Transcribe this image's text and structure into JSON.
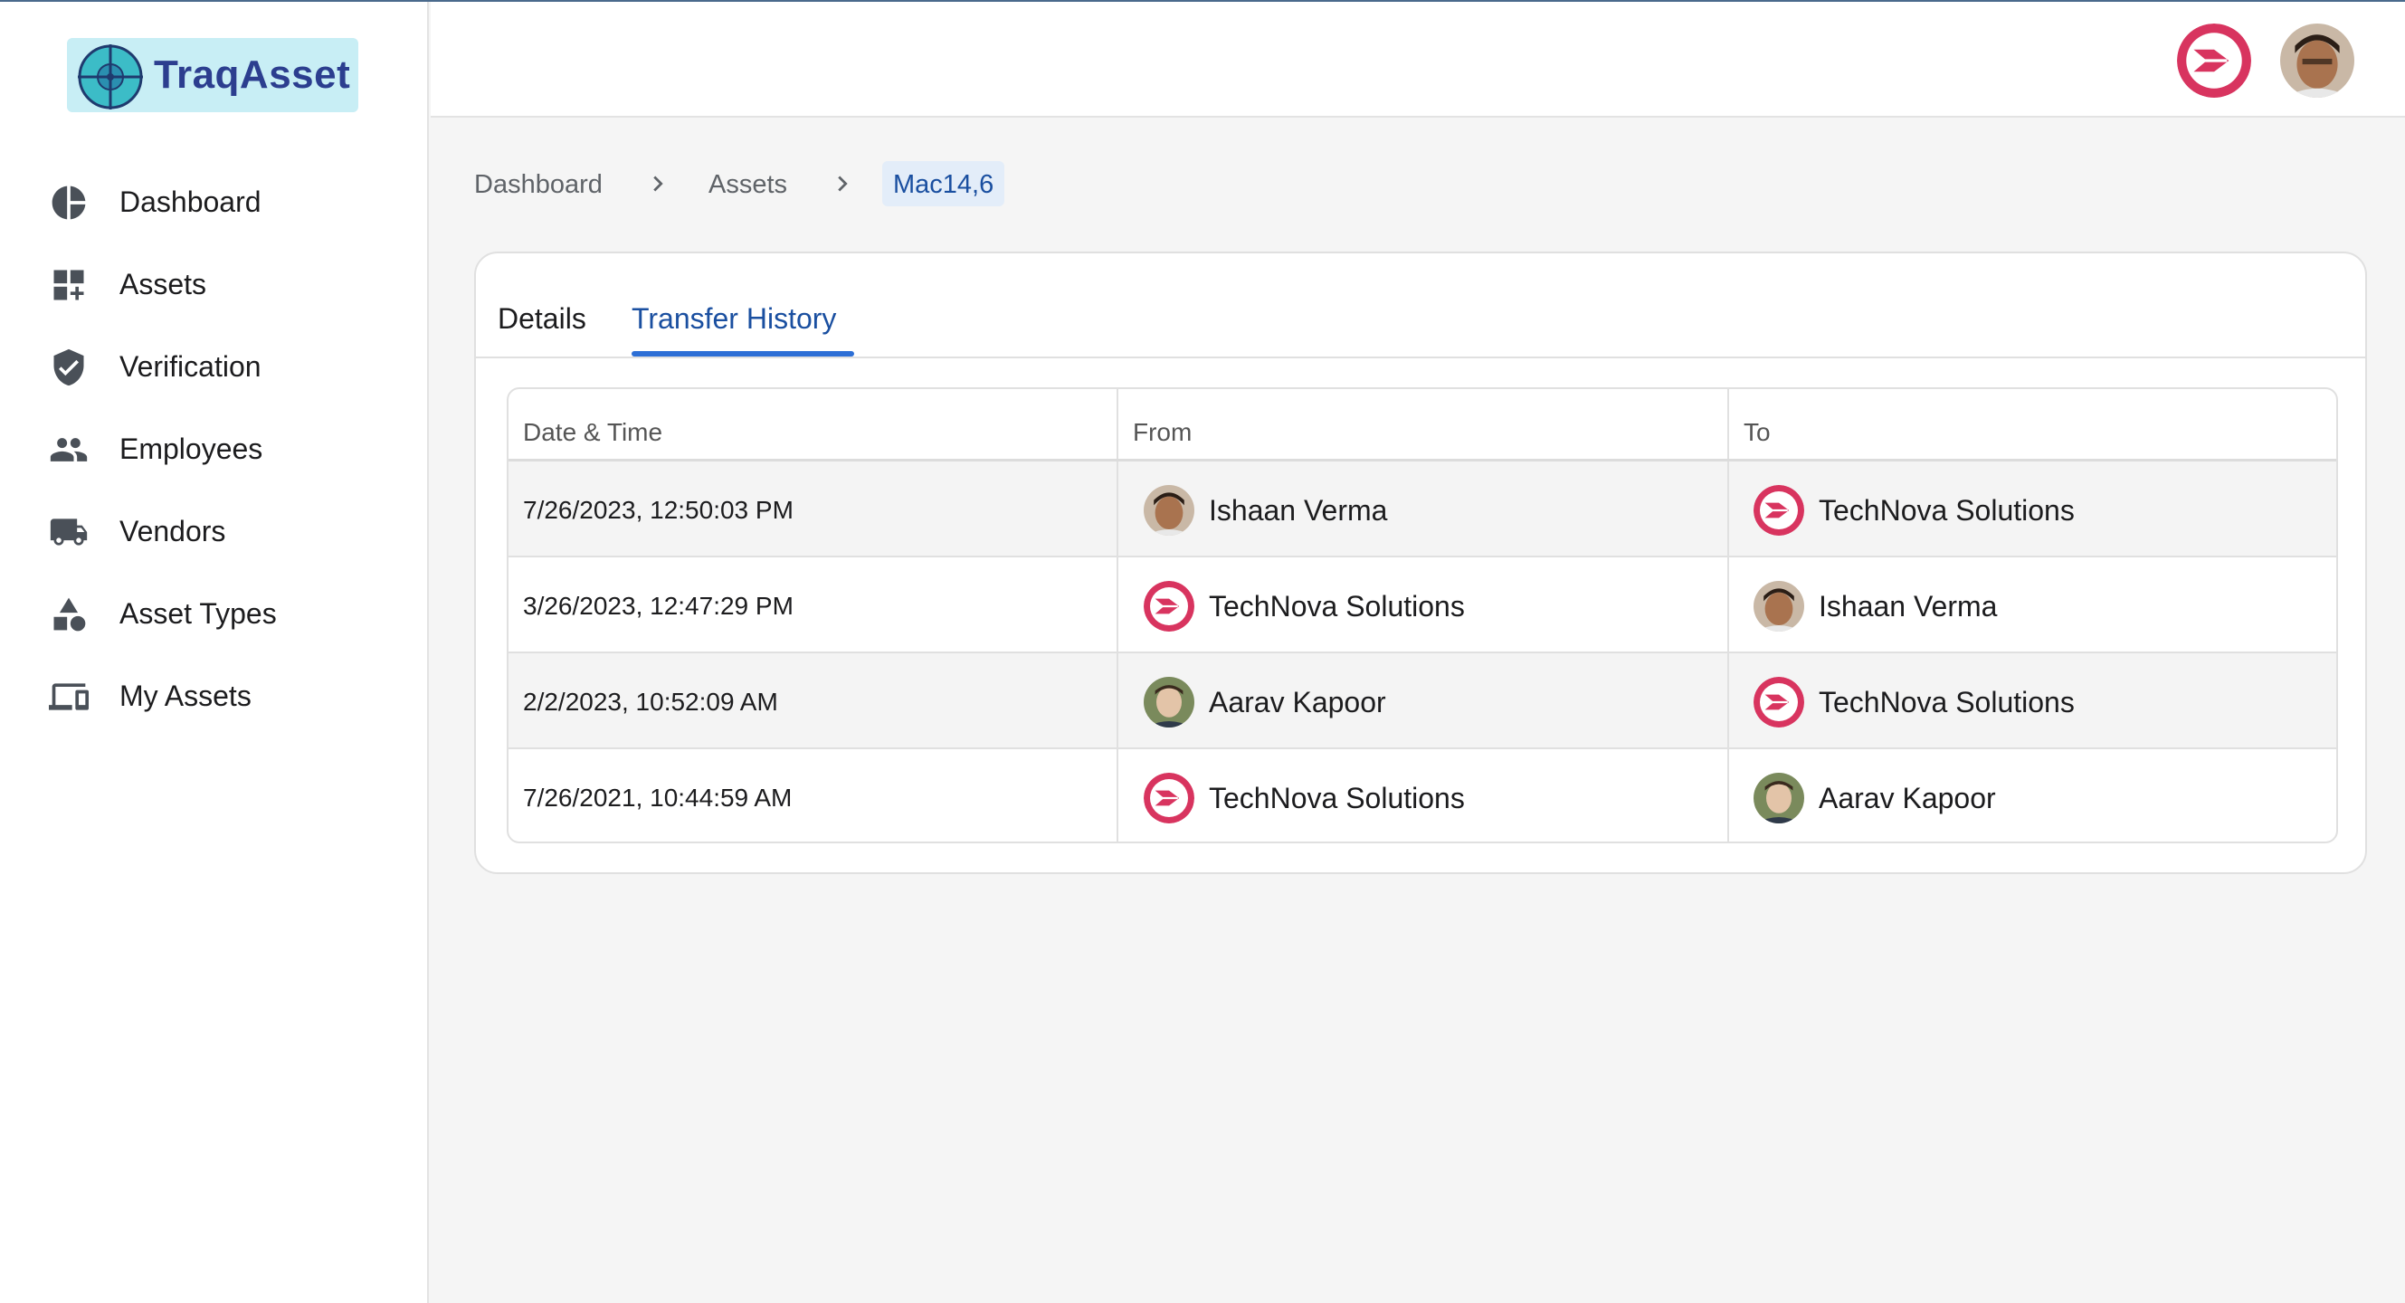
{
  "app": {
    "name": "TraqAsset"
  },
  "sidebar": {
    "items": [
      {
        "label": "Dashboard",
        "icon": "pie-chart-icon"
      },
      {
        "label": "Assets",
        "icon": "grid-add-icon"
      },
      {
        "label": "Verification",
        "icon": "verified-shield-icon"
      },
      {
        "label": "Employees",
        "icon": "people-icon"
      },
      {
        "label": "Vendors",
        "icon": "truck-icon"
      },
      {
        "label": "Asset Types",
        "icon": "shapes-icon"
      },
      {
        "label": "My Assets",
        "icon": "devices-icon"
      }
    ]
  },
  "breadcrumb": {
    "items": [
      "Dashboard",
      "Assets"
    ],
    "current": "Mac14,6"
  },
  "tabs": [
    {
      "label": "Details",
      "active": false
    },
    {
      "label": "Transfer History",
      "active": true
    }
  ],
  "table": {
    "headers": [
      "Date & Time",
      "From",
      "To"
    ],
    "rows": [
      {
        "date": "7/26/2023, 12:50:03 PM",
        "from": "Ishaan Verma",
        "to": "TechNova Solutions"
      },
      {
        "date": "3/26/2023, 12:47:29 PM",
        "from": "TechNova Solutions",
        "to": "Ishaan Verma"
      },
      {
        "date": "2/2/2023, 10:52:09 AM",
        "from": "Aarav Kapoor",
        "to": "TechNova Solutions"
      },
      {
        "date": "7/26/2021, 10:44:59 AM",
        "from": "TechNova Solutions",
        "to": "Aarav Kapoor"
      }
    ]
  },
  "colors": {
    "accent": "#2d6fd6",
    "brand_red": "#d8345f",
    "logo_bg": "#c8eef5"
  }
}
